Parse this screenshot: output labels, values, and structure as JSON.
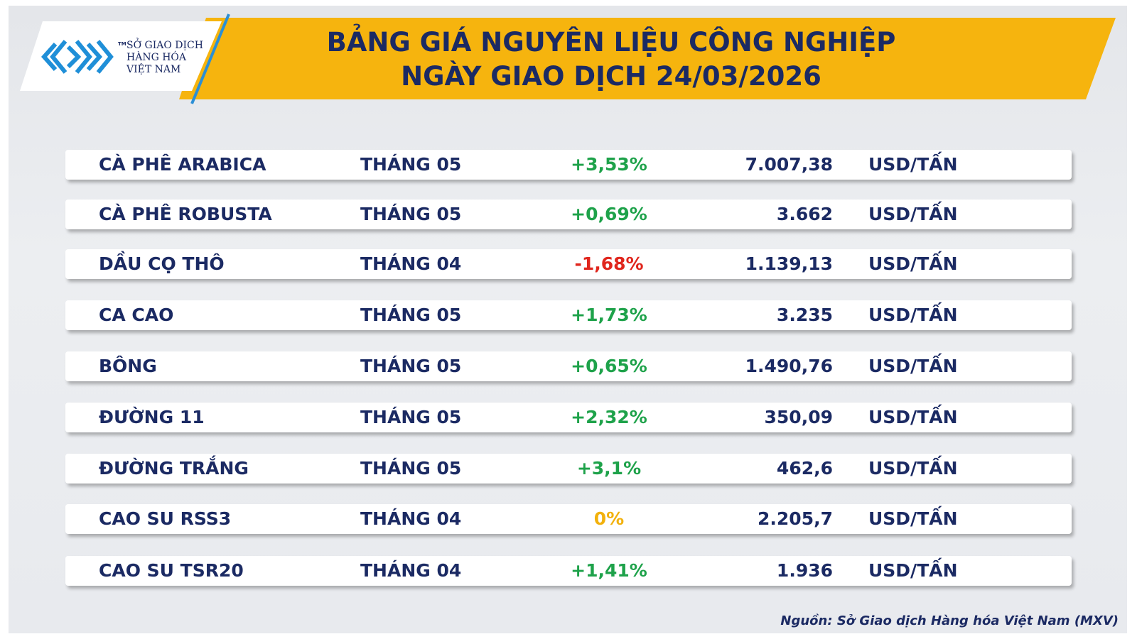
{
  "logo": {
    "tm": "TM",
    "lines": [
      "SỞ GIAO DỊCH",
      "HÀNG HÓA",
      "VIỆT NAM"
    ]
  },
  "header": {
    "title_lines": [
      "BẢNG GIÁ NGUYÊN LIỆU CÔNG NGHIỆP",
      "NGÀY GIAO DỊCH 24/03/2026"
    ]
  },
  "table": {
    "rows": [
      [
        "CÀ PHÊ ARABICA",
        "THÁNG 05",
        "+3,53%",
        "7.007,38",
        "USD/TẤN"
      ],
      [
        "CÀ PHÊ ROBUSTA",
        "THÁNG 05",
        "+0,69%",
        "3.662",
        "USD/TẤN"
      ],
      [
        "DẦU CỌ THÔ",
        "THÁNG 04",
        "-1,68%",
        "1.139,13",
        "USD/TẤN"
      ],
      [
        "CA CAO",
        "THÁNG 05",
        "+1,73%",
        "3.235",
        "USD/TẤN"
      ],
      [
        "BÔNG",
        "THÁNG 05",
        "+0,65%",
        "1.490,76",
        "USD/TẤN"
      ],
      [
        "ĐƯỜNG 11",
        "THÁNG 05",
        "+2,32%",
        "350,09",
        "USD/TẤN"
      ],
      [
        "ĐƯỜNG TRẮNG",
        "THÁNG 05",
        "+3,1%",
        "462,6",
        "USD/TẤN"
      ],
      [
        "CAO SU RSS3",
        "THÁNG 04",
        "0%",
        "2.205,7",
        "USD/TẤN"
      ],
      [
        "CAO SU TSR20",
        "THÁNG 04",
        "+1,41%",
        "1.936",
        "USD/TẤN"
      ]
    ]
  },
  "footer": {
    "source": "Nguồn: Sở Giao dịch Hàng hóa Việt Nam (MXV)"
  }
}
